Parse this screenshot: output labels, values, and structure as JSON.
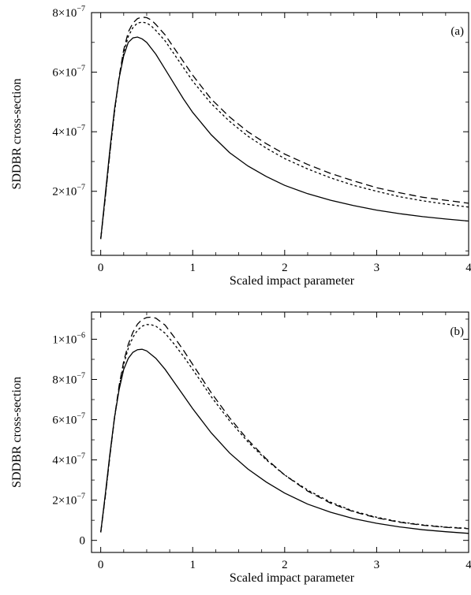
{
  "chart_data": [
    {
      "type": "line",
      "panel_label": "(a)",
      "xlabel": "Scaled impact parameter",
      "ylabel": "SDDBR cross-section",
      "xlim": [
        -0.1,
        4.0
      ],
      "ylim": [
        -1.5e-08,
        8e-07
      ],
      "x_ticks": [
        0,
        1,
        2,
        3,
        4
      ],
      "x_tick_labels": [
        "0",
        "1",
        "2",
        "3",
        "4"
      ],
      "y_ticks": [
        2e-07,
        4e-07,
        6e-07,
        8e-07
      ],
      "y_tick_labels": [
        "2×10",
        "4×10",
        "6×10",
        "8×10"
      ],
      "y_tick_exponent": "−7",
      "y_minor_ticks": [
        1e-07,
        3e-07,
        5e-07,
        7e-07,
        0
      ],
      "grid": false,
      "series": [
        {
          "style": "solid",
          "x": [
            0,
            0.05,
            0.1,
            0.15,
            0.2,
            0.25,
            0.3,
            0.35,
            0.4,
            0.45,
            0.5,
            0.6,
            0.7,
            0.8,
            0.9,
            1.0,
            1.2,
            1.4,
            1.6,
            1.8,
            2.0,
            2.25,
            2.5,
            2.75,
            3.0,
            3.25,
            3.5,
            3.75,
            4.0
          ],
          "y": [
            4e-08,
            1.9e-07,
            3.4e-07,
            4.75e-07,
            5.8e-07,
            6.55e-07,
            7e-07,
            7.15e-07,
            7.18e-07,
            7.12e-07,
            7e-07,
            6.6e-07,
            6.1e-07,
            5.6e-07,
            5.1e-07,
            4.65e-07,
            3.9e-07,
            3.3e-07,
            2.85e-07,
            2.5e-07,
            2.2e-07,
            1.92e-07,
            1.7e-07,
            1.52e-07,
            1.37e-07,
            1.25e-07,
            1.15e-07,
            1.07e-07,
            1e-07
          ]
        },
        {
          "style": "dashed",
          "x": [
            0,
            0.05,
            0.1,
            0.15,
            0.2,
            0.25,
            0.3,
            0.35,
            0.4,
            0.45,
            0.5,
            0.55,
            0.6,
            0.7,
            0.8,
            0.9,
            1.0,
            1.2,
            1.4,
            1.6,
            1.8,
            2.0,
            2.25,
            2.5,
            2.75,
            3.0,
            3.25,
            3.5,
            3.75,
            4.0
          ],
          "y": [
            4e-08,
            1.8e-07,
            3.3e-07,
            4.7e-07,
            5.85e-07,
            6.75e-07,
            7.35e-07,
            7.65e-07,
            7.8e-07,
            7.85e-07,
            7.83e-07,
            7.75e-07,
            7.6e-07,
            7.25e-07,
            6.8e-07,
            6.35e-07,
            5.9e-07,
            5.1e-07,
            4.5e-07,
            4e-07,
            3.6e-07,
            3.25e-07,
            2.9e-07,
            2.6e-07,
            2.35e-07,
            2.12e-07,
            1.95e-07,
            1.8e-07,
            1.7e-07,
            1.6e-07
          ]
        },
        {
          "style": "dotted",
          "x": [
            0,
            0.05,
            0.1,
            0.15,
            0.2,
            0.25,
            0.3,
            0.35,
            0.4,
            0.45,
            0.5,
            0.55,
            0.6,
            0.7,
            0.8,
            0.9,
            1.0,
            1.2,
            1.4,
            1.6,
            1.8,
            2.0,
            2.25,
            2.5,
            2.75,
            3.0,
            3.25,
            3.5,
            3.75,
            4.0
          ],
          "y": [
            4e-08,
            1.8e-07,
            3.3e-07,
            4.65e-07,
            5.8e-07,
            6.65e-07,
            7.2e-07,
            7.5e-07,
            7.65e-07,
            7.68e-07,
            7.65e-07,
            7.55e-07,
            7.4e-07,
            7.05e-07,
            6.6e-07,
            6.15e-07,
            5.7e-07,
            4.95e-07,
            4.35e-07,
            3.85e-07,
            3.45e-07,
            3.1e-07,
            2.75e-07,
            2.45e-07,
            2.2e-07,
            2e-07,
            1.82e-07,
            1.68e-07,
            1.57e-07,
            1.47e-07
          ]
        }
      ]
    },
    {
      "type": "line",
      "panel_label": "(b)",
      "xlabel": "Scaled impact parameter",
      "ylabel": "SDDBR cross-section",
      "xlim": [
        -0.1,
        4.0
      ],
      "ylim": [
        -6e-08,
        1.135e-06
      ],
      "x_ticks": [
        0,
        1,
        2,
        3,
        4
      ],
      "x_tick_labels": [
        "0",
        "1",
        "2",
        "3",
        "4"
      ],
      "y_ticks": [
        0,
        2e-07,
        4e-07,
        6e-07,
        8e-07,
        1e-06
      ],
      "y_tick_labels": [
        "0",
        "2×10",
        "4×10",
        "6×10",
        "8×10",
        "1×10"
      ],
      "y_tick_exponents": [
        "",
        "−7",
        "−7",
        "−7",
        "−7",
        "−6"
      ],
      "y_minor_ticks": [
        1e-07,
        3e-07,
        5e-07,
        7e-07,
        9e-07,
        1.1e-06
      ],
      "grid": false,
      "series": [
        {
          "style": "solid",
          "x": [
            0,
            0.05,
            0.1,
            0.15,
            0.2,
            0.25,
            0.3,
            0.35,
            0.4,
            0.45,
            0.5,
            0.6,
            0.7,
            0.8,
            0.9,
            1.0,
            1.2,
            1.4,
            1.6,
            1.8,
            2.0,
            2.25,
            2.5,
            2.75,
            3.0,
            3.25,
            3.5,
            3.75,
            4.0
          ],
          "y": [
            4e-08,
            2.3e-07,
            4.3e-07,
            6.1e-07,
            7.5e-07,
            8.5e-07,
            9.05e-07,
            9.35e-07,
            9.48e-07,
            9.5e-07,
            9.42e-07,
            9.05e-07,
            8.5e-07,
            7.85e-07,
            7.2e-07,
            6.55e-07,
            5.35e-07,
            4.35e-07,
            3.55e-07,
            2.9e-07,
            2.35e-07,
            1.8e-07,
            1.4e-07,
            1.08e-07,
            8.5e-08,
            6.7e-08,
            5.3e-08,
            4.3e-08,
            3.5e-08
          ]
        },
        {
          "style": "dashed",
          "x": [
            0,
            0.05,
            0.1,
            0.15,
            0.2,
            0.25,
            0.3,
            0.35,
            0.4,
            0.45,
            0.5,
            0.55,
            0.6,
            0.7,
            0.8,
            0.9,
            1.0,
            1.2,
            1.4,
            1.6,
            1.8,
            2.0,
            2.25,
            2.5,
            2.75,
            3.0,
            3.25,
            3.5,
            3.75,
            4.0
          ],
          "y": [
            4e-08,
            2.2e-07,
            4.2e-07,
            6.1e-07,
            7.7e-07,
            8.9e-07,
            9.75e-07,
            1.035e-06,
            1.075e-06,
            1.098e-06,
            1.108e-06,
            1.11e-06,
            1.105e-06,
            1.07e-06,
            1.01e-06,
            9.45e-07,
            8.75e-07,
            7.35e-07,
            6.1e-07,
            5e-07,
            4.05e-07,
            3.25e-07,
            2.45e-07,
            1.85e-07,
            1.42e-07,
            1.12e-07,
            9e-08,
            7.5e-08,
            6.5e-08,
            5.8e-08
          ]
        },
        {
          "style": "dotted",
          "x": [
            0,
            0.05,
            0.1,
            0.15,
            0.2,
            0.25,
            0.3,
            0.35,
            0.4,
            0.45,
            0.5,
            0.55,
            0.6,
            0.7,
            0.8,
            0.9,
            1.0,
            1.2,
            1.4,
            1.6,
            1.8,
            2.0,
            2.25,
            2.5,
            2.75,
            3.0,
            3.25,
            3.5,
            3.75,
            4.0
          ],
          "y": [
            4e-08,
            2.2e-07,
            4.2e-07,
            6.05e-07,
            7.6e-07,
            8.75e-07,
            9.55e-07,
            1.01e-06,
            1.045e-06,
            1.065e-06,
            1.073e-06,
            1.072e-06,
            1.065e-06,
            1.03e-06,
            9.75e-07,
            9.15e-07,
            8.5e-07,
            7.15e-07,
            5.95e-07,
            4.9e-07,
            4e-07,
            3.25e-07,
            2.5e-07,
            1.9e-07,
            1.45e-07,
            1.15e-07,
            9.2e-08,
            7.7e-08,
            6.6e-08,
            6e-08
          ]
        }
      ]
    }
  ]
}
